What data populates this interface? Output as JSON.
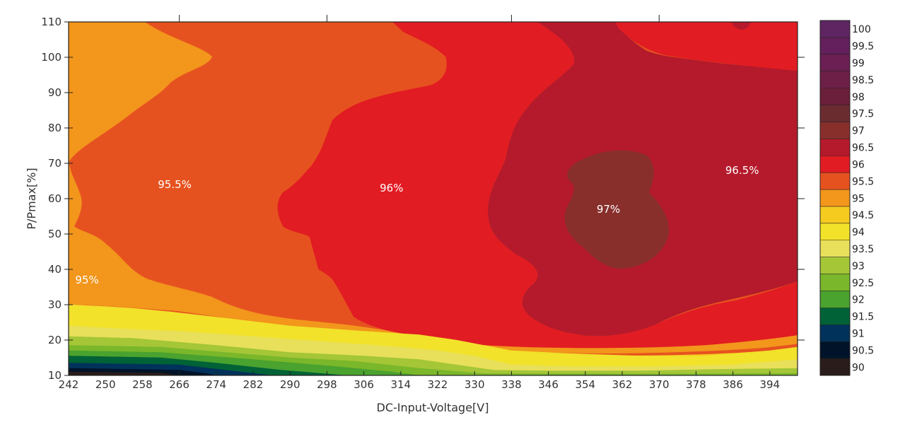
{
  "chart_data": {
    "type": "heatmap",
    "subtype": "filled-contour",
    "title": "",
    "xlabel": "DC-Input-Voltage[V]",
    "ylabel": "P/Pmax[%]",
    "xlim": [
      242,
      400
    ],
    "ylim": [
      10,
      110
    ],
    "x_ticks": [
      242,
      250,
      258,
      266,
      274,
      282,
      290,
      298,
      306,
      314,
      322,
      330,
      338,
      346,
      354,
      362,
      370,
      378,
      386,
      394
    ],
    "y_ticks": [
      10,
      20,
      30,
      40,
      50,
      60,
      70,
      80,
      90,
      100,
      110
    ],
    "grid": false,
    "colorbar": {
      "position": "right",
      "levels": [
        90,
        90.5,
        91,
        91.5,
        92,
        92.5,
        93,
        93.5,
        94,
        94.5,
        95,
        95.5,
        96,
        96.5,
        97,
        97.5,
        98,
        98.5,
        99,
        99.5,
        100
      ],
      "level_labels": [
        "90",
        "90.5",
        "91",
        "91.5",
        "92",
        "92.5",
        "93",
        "93.5",
        "94",
        "94.5",
        "95",
        "95.5",
        "96",
        "96.5",
        "97",
        "97.5",
        "98",
        "98.5",
        "99",
        "99.5",
        "100"
      ],
      "colors": [
        "#2a1c1a",
        "#001328",
        "#00325b",
        "#006236",
        "#4aa22f",
        "#7ab72a",
        "#a4c637",
        "#e8e05a",
        "#f2e22a",
        "#f5cb20",
        "#f2961c",
        "#e6521f",
        "#e21c23",
        "#b41a2b",
        "#882f2c",
        "#6b2c30",
        "#6c1f3a",
        "#6e1f48",
        "#6b1f52",
        "#63205c",
        "#5f2562"
      ]
    },
    "regions": [
      {
        "level": 94,
        "boundary": [
          [
            242,
            30
          ],
          [
            250,
            29.5
          ],
          [
            256,
            29
          ],
          [
            264,
            28
          ],
          [
            274,
            26.5
          ],
          [
            290,
            24
          ],
          [
            306,
            22.5
          ],
          [
            318,
            21.5
          ],
          [
            326,
            20
          ],
          [
            332,
            18.5
          ],
          [
            338,
            17
          ],
          [
            350,
            16.2
          ],
          [
            366,
            15.5
          ],
          [
            380,
            15.5
          ],
          [
            394,
            17
          ],
          [
            400,
            18
          ],
          [
            400,
            10
          ],
          [
            242,
            10
          ]
        ]
      },
      {
        "level": 93.5,
        "boundary": [
          [
            242,
            24
          ],
          [
            256,
            23
          ],
          [
            266,
            22.5
          ],
          [
            282,
            21
          ],
          [
            298,
            19.5
          ],
          [
            314,
            18
          ],
          [
            322,
            17
          ],
          [
            330,
            15.5
          ],
          [
            338,
            13
          ],
          [
            350,
            12.5
          ],
          [
            370,
            12.5
          ],
          [
            386,
            13
          ],
          [
            400,
            14.5
          ],
          [
            400,
            10
          ],
          [
            242,
            10
          ]
        ]
      },
      {
        "level": 93,
        "boundary": [
          [
            242,
            21
          ],
          [
            256,
            20.5
          ],
          [
            274,
            18.5
          ],
          [
            290,
            16.5
          ],
          [
            306,
            15.5
          ],
          [
            318,
            14.5
          ],
          [
            326,
            13
          ],
          [
            334,
            11.5
          ],
          [
            346,
            11.3
          ],
          [
            366,
            11.3
          ],
          [
            382,
            11.7
          ],
          [
            400,
            12
          ],
          [
            400,
            10
          ],
          [
            242,
            10
          ]
        ]
      },
      {
        "level": 92.5,
        "boundary": [
          [
            242,
            18.5
          ],
          [
            262,
            18
          ],
          [
            276,
            16.5
          ],
          [
            290,
            15
          ],
          [
            304,
            14
          ],
          [
            318,
            12
          ],
          [
            332,
            10.5
          ],
          [
            370,
            10.4
          ],
          [
            400,
            10.6
          ],
          [
            400,
            10
          ],
          [
            242,
            10
          ]
        ]
      },
      {
        "level": 92,
        "boundary": [
          [
            242,
            17
          ],
          [
            262,
            16.5
          ],
          [
            282,
            14.5
          ],
          [
            300,
            12.5
          ],
          [
            312,
            11
          ],
          [
            318,
            10
          ],
          [
            242,
            10
          ]
        ]
      },
      {
        "level": 91.5,
        "boundary": [
          [
            242,
            15.5
          ],
          [
            262,
            15
          ],
          [
            274,
            13.5
          ],
          [
            288,
            11.5
          ],
          [
            302,
            10
          ],
          [
            242,
            10
          ]
        ]
      },
      {
        "level": 91,
        "boundary": [
          [
            242,
            13.5
          ],
          [
            266,
            13
          ],
          [
            276,
            11.5
          ],
          [
            286,
            10
          ],
          [
            242,
            10
          ]
        ]
      },
      {
        "level": 90.5,
        "boundary": [
          [
            242,
            12
          ],
          [
            266,
            11.5
          ],
          [
            272,
            10.5
          ],
          [
            274,
            10
          ],
          [
            242,
            10
          ]
        ]
      },
      {
        "level": 90,
        "boundary": [
          [
            242,
            11
          ],
          [
            262,
            10.7
          ],
          [
            266,
            10
          ],
          [
            242,
            10
          ]
        ]
      }
    ],
    "annotations": [
      {
        "text": "95.5%",
        "x": 265,
        "y": 63
      },
      {
        "text": "96%",
        "x": 312,
        "y": 62
      },
      {
        "text": "97%",
        "x": 359,
        "y": 56
      },
      {
        "text": "96.5%",
        "x": 388,
        "y": 67
      },
      {
        "text": "95%",
        "x": 246,
        "y": 36
      }
    ]
  }
}
